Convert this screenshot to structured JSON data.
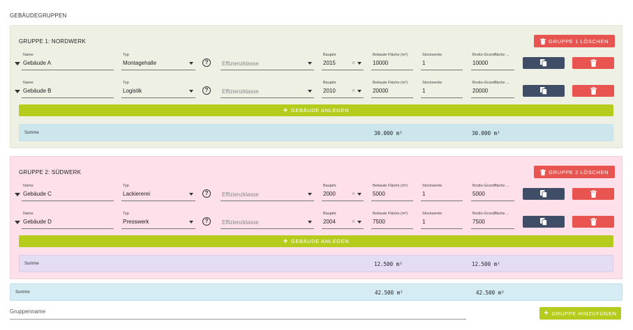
{
  "page": {
    "heading": "GEBÄUDEGRUPPEN"
  },
  "labels": {
    "name": "Name",
    "typ": "Typ",
    "effizienz_placeholder": "Effizienzklasse",
    "baujahr": "Baujahr",
    "bebaute_flaeche": "Bebaute Fläche (m²)",
    "stockwerke": "Stockwerke",
    "brutto": "Brutto-Grundfläche ...",
    "help": "?",
    "clear": "×",
    "summe": "Summe"
  },
  "groups": [
    {
      "title": "GRUPPE 1: NORDWERK",
      "delete_label": "GRUPPE 1 LÖSCHEN",
      "add_building_label": "GEBÄUDE ANLEGEN",
      "buildings": [
        {
          "name": "Gebäude A",
          "typ": "Montagehalle",
          "baujahr": "2015",
          "flaeche": "10000",
          "stockwerke": "1",
          "brutto": "10000"
        },
        {
          "name": "Gebäude B",
          "typ": "Logistik",
          "baujahr": "2010",
          "flaeche": "20000",
          "stockwerke": "1",
          "brutto": "20000"
        }
      ],
      "sum_flaeche": "30.000 m²",
      "sum_brutto": "30.000 m²"
    },
    {
      "title": "GRUPPE 2: SÜDWERK",
      "delete_label": "GRUPPE 2 LÖSCHEN",
      "add_building_label": "GEBÄUDE ANLEGEN",
      "buildings": [
        {
          "name": "Gebäude C",
          "typ": "Lackiererei",
          "baujahr": "2000",
          "flaeche": "5000",
          "stockwerke": "1",
          "brutto": "5000"
        },
        {
          "name": "Gebäude D",
          "typ": "Presswerk",
          "baujahr": "2004",
          "flaeche": "7500",
          "stockwerke": "1",
          "brutto": "7500"
        }
      ],
      "sum_flaeche": "12.500 m²",
      "sum_brutto": "12.500 m²"
    }
  ],
  "total": {
    "flaeche": "42.500 m²",
    "brutto": "42.500 m²"
  },
  "footer": {
    "gruppenname_placeholder": "Gruppenname",
    "add_group_label": "GRUPPE HINZUFÜGEN"
  },
  "colors": {
    "delete_red": "#e8544f",
    "copy_navy": "#3f4e66",
    "add_green": "#b6cc1c",
    "group1_bg": "#eef0e4",
    "group2_bg": "#fde0e9"
  },
  "icons": {
    "trash": "trash-icon",
    "copy": "copy-icon",
    "plus": "plus-icon",
    "help": "help-circle-icon",
    "caret": "caret-down-icon"
  }
}
